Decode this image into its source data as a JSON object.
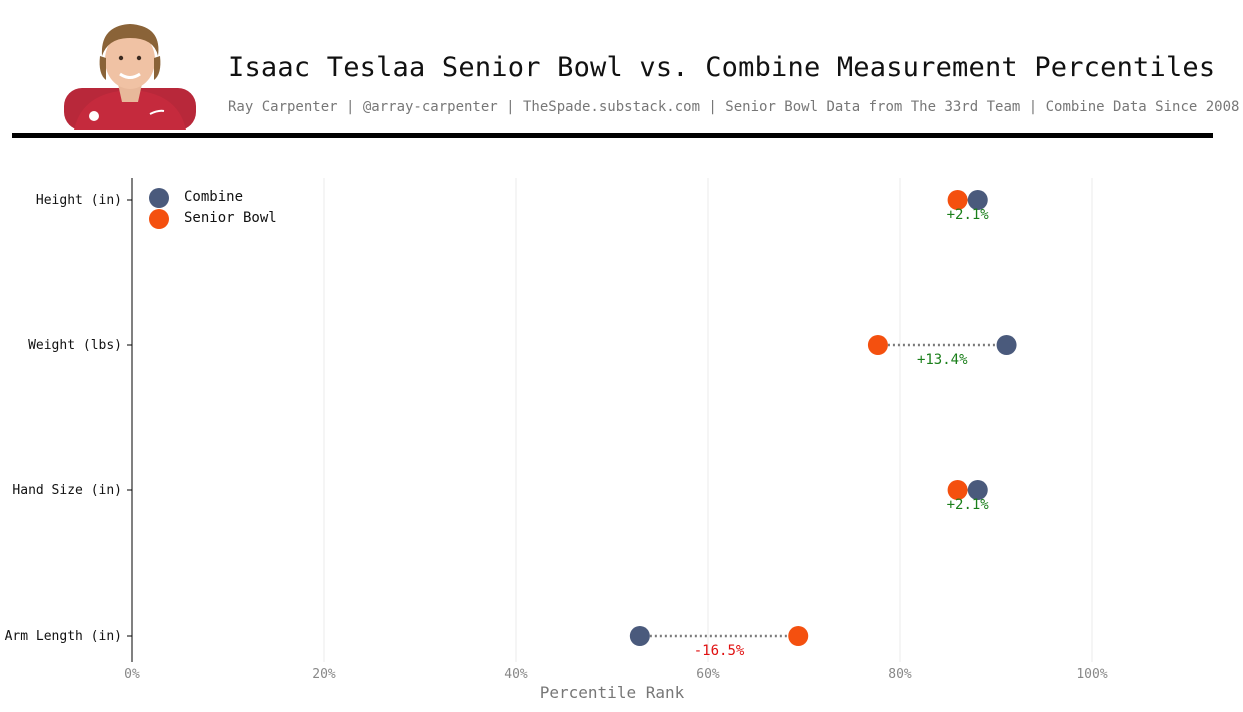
{
  "header": {
    "title": "Isaac Teslaa Senior Bowl vs. Combine Measurement Percentiles",
    "subtitle": "Ray Carpenter | @array-carpenter | TheSpade.substack.com | Senior Bowl Data from The 33rd Team | Combine Data Since 2008"
  },
  "colors": {
    "combine": "#4a5a7c",
    "senior_bowl": "#f4500f",
    "positive": "#1a7f1a",
    "negative": "#e01010",
    "connector": "#7a7a7a",
    "grid": "#eeeeee"
  },
  "chart_data": {
    "type": "scatter",
    "xlabel": "Percentile Rank",
    "xlim": [
      0,
      100
    ],
    "xticks": [
      "0%",
      "20%",
      "40%",
      "60%",
      "80%",
      "100%"
    ],
    "grid": "vertical",
    "legend_position": "top-left",
    "categories": [
      "Height (in)",
      "Weight (lbs)",
      "Hand Size (in)",
      "Arm Length (in)"
    ],
    "series": [
      {
        "name": "Combine",
        "values": [
          88.1,
          91.1,
          88.1,
          52.9
        ]
      },
      {
        "name": "Senior Bowl",
        "values": [
          86.0,
          77.7,
          86.0,
          69.4
        ]
      }
    ],
    "differences": [
      "+2.1%",
      "+13.4%",
      "+2.1%",
      "-16.5%"
    ]
  }
}
